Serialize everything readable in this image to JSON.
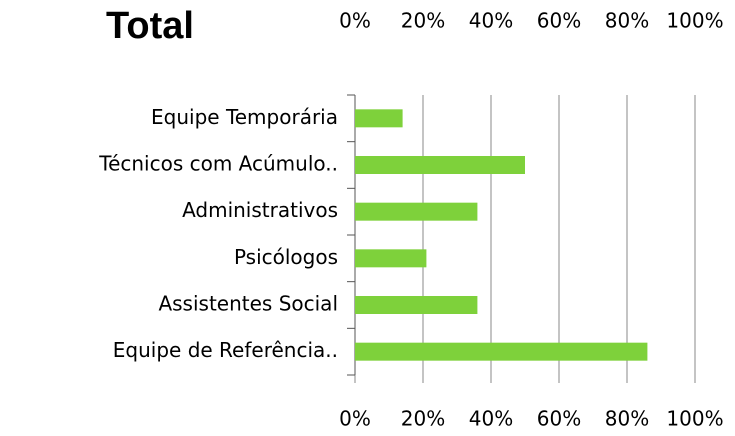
{
  "chart_data": {
    "type": "bar",
    "orientation": "horizontal",
    "title": "Total",
    "categories": [
      "Equipe Temporária",
      "Técnicos com Acúmulo..",
      "Administrativos",
      "Psicólogos",
      "Assistentes Social",
      "Equipe de Referência.."
    ],
    "values": [
      14,
      50,
      36,
      21,
      36,
      86
    ],
    "color": "#7ed13b",
    "xlim": [
      0,
      100
    ],
    "xticks": [
      {
        "value": 0,
        "label": "0%"
      },
      {
        "value": 20,
        "label": "20%"
      },
      {
        "value": 40,
        "label": "40%"
      },
      {
        "value": 60,
        "label": "60%"
      },
      {
        "value": 80,
        "label": "80%"
      },
      {
        "value": 100,
        "label": "100%"
      }
    ],
    "grid": true
  }
}
